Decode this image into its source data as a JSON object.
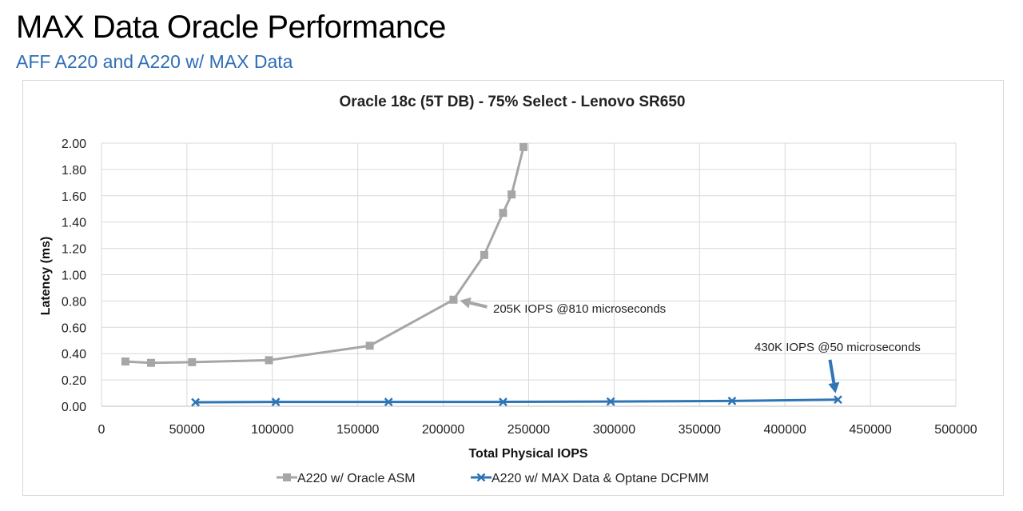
{
  "slide": {
    "title": "MAX Data Oracle Performance",
    "subtitle": "AFF A220 and A220 w/ MAX Data"
  },
  "chart_data": {
    "type": "line",
    "title": "Oracle 18c (5T DB) - 75% Select - Lenovo SR650",
    "xlabel": "Total Physical IOPS",
    "ylabel": "Latency (ms)",
    "xlim": [
      0,
      500000
    ],
    "ylim": [
      0,
      2
    ],
    "x_ticks": [
      "0",
      "50000",
      "100000",
      "150000",
      "200000",
      "250000",
      "300000",
      "350000",
      "400000",
      "450000",
      "500000"
    ],
    "y_ticks": [
      "0.00",
      "0.20",
      "0.40",
      "0.60",
      "0.80",
      "1.00",
      "1.20",
      "1.40",
      "1.60",
      "1.80",
      "2.00"
    ],
    "grid": true,
    "legend_position": "bottom",
    "series": [
      {
        "name": "A220 w/ Oracle ASM",
        "color": "#a6a6a6",
        "marker": "square",
        "points": [
          [
            14000,
            0.34
          ],
          [
            29000,
            0.33
          ],
          [
            53000,
            0.335
          ],
          [
            98000,
            0.35
          ],
          [
            157000,
            0.46
          ],
          [
            206000,
            0.81
          ],
          [
            224000,
            1.15
          ],
          [
            235000,
            1.47
          ],
          [
            240000,
            1.61
          ],
          [
            247000,
            1.97
          ]
        ]
      },
      {
        "name": "A220 w/ MAX Data & Optane DCPMM",
        "color": "#2e75b6",
        "marker": "x",
        "points": [
          [
            55000,
            0.03
          ],
          [
            102000,
            0.033
          ],
          [
            168000,
            0.033
          ],
          [
            235000,
            0.033
          ],
          [
            298000,
            0.036
          ],
          [
            369000,
            0.04
          ],
          [
            431000,
            0.05
          ]
        ]
      }
    ],
    "annotations": [
      {
        "text": "205K IOPS  @810 microseconds",
        "arrow_color": "#a6a6a6",
        "points_to": [
          206000,
          0.81
        ]
      },
      {
        "text": "430K IOPS  @50 microseconds",
        "arrow_color": "#2e75b6",
        "points_to": [
          431000,
          0.05
        ]
      }
    ]
  }
}
